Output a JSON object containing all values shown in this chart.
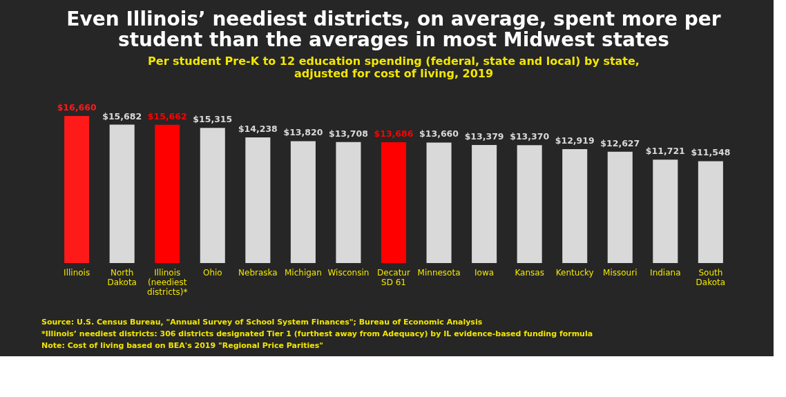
{
  "chart_data": {
    "type": "bar",
    "title": "Even Illinois’ neediest districts, on average, spent more per student than the averages in most Midwest states",
    "subtitle": "Per student Pre-K to 12 education spending (federal, state and local) by state, adjusted for cost of living, 2019",
    "categories": [
      "Illinois",
      "North\nDakota",
      "Illinois\n(neediest\ndistricts)*",
      "Ohio",
      "Nebraska",
      "Michigan",
      "Wisconsin",
      "Decatur\nSD 61",
      "Minnesota",
      "Iowa",
      "Kansas",
      "Kentucky",
      "Missouri",
      "Indiana",
      "South\nDakota"
    ],
    "values": [
      16660,
      15682,
      15662,
      15315,
      14238,
      13820,
      13708,
      13686,
      13660,
      13379,
      13370,
      12919,
      12627,
      11721,
      11548
    ],
    "value_labels": [
      "$16,660",
      "$15,682",
      "$15,662",
      "$15,315",
      "$14,238",
      "$13,820",
      "$13,708",
      "$13,686",
      "$13,660",
      "$13,379",
      "$13,370",
      "$12,919",
      "$12,627",
      "$11,721",
      "$11,548"
    ],
    "colors": [
      "#ff1a1a",
      "#d9d9d9",
      "#ff0000",
      "#d9d9d9",
      "#d9d9d9",
      "#d9d9d9",
      "#d9d9d9",
      "#ff0000",
      "#d9d9d9",
      "#d9d9d9",
      "#d9d9d9",
      "#d9d9d9",
      "#d9d9d9",
      "#d9d9d9",
      "#d9d9d9"
    ],
    "tick_labels": "x",
    "grid": false,
    "legend": false,
    "annotations": [
      "Source: U.S. Census Bureau, \"Annual Survey of School System Finances\"; Bureau of Economic Analysis",
      "*Illinois’ neediest districts: 306 districts designated Tier 1 (furthest away from Adequacy) by IL evidence-based funding formula",
      "Note: Cost of living based on BEA's 2019 \"Regional Price Parities\""
    ]
  }
}
